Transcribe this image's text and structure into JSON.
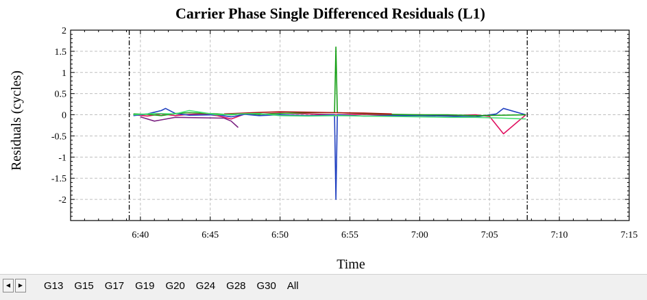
{
  "chart_data": {
    "type": "line",
    "title": "Carrier Phase Single Differenced Residuals (L1)",
    "xlabel": "Time",
    "ylabel": "Residuals (cycles)",
    "ylim": [
      -2.5,
      2
    ],
    "xlim_minutes": [
      35,
      75
    ],
    "x_ticks": [
      "6:40",
      "6:45",
      "6:50",
      "6:55",
      "7:00",
      "7:05",
      "7:10",
      "7:15"
    ],
    "x_tick_minutes": [
      40,
      45,
      50,
      55,
      60,
      65,
      70,
      75
    ],
    "y_ticks": [
      2,
      1.5,
      1,
      0.5,
      0,
      -0.5,
      -1,
      -1.5,
      -2
    ],
    "grid": true,
    "vertical_markers_minutes": [
      39.2,
      67.7
    ],
    "series": [
      {
        "color": "#e01060",
        "x": [
          39.5,
          40.5,
          41.5,
          42.5,
          43.5,
          44.5,
          45.5,
          46.5,
          47.5,
          48.5,
          50,
          52,
          54,
          56,
          58,
          60,
          62,
          64,
          65,
          66,
          67.6
        ],
        "values": [
          0.0,
          -0.03,
          0.02,
          -0.02,
          0.01,
          0.02,
          -0.02,
          -0.1,
          0.02,
          0.01,
          0.04,
          0.02,
          0.0,
          0.01,
          -0.01,
          0.0,
          -0.02,
          0.0,
          -0.04,
          -0.45,
          0.0
        ]
      },
      {
        "color": "#2040c0",
        "x": [
          39.5,
          40.5,
          41.5,
          41.8,
          42.5,
          43.5,
          45.5,
          46.5,
          47.5,
          48.5,
          50,
          52,
          53.9,
          54,
          54.1,
          56,
          58,
          60,
          62,
          64,
          65.5,
          66,
          67.6
        ],
        "values": [
          -0.02,
          0.02,
          0.1,
          0.15,
          0.03,
          -0.01,
          0.0,
          -0.05,
          0.01,
          -0.02,
          0.0,
          -0.02,
          0.0,
          -2.0,
          0.0,
          -0.03,
          -0.02,
          -0.02,
          -0.03,
          -0.05,
          0.02,
          0.15,
          0.0
        ]
      },
      {
        "color": "#18a018",
        "x": [
          39.5,
          40.5,
          41.5,
          42.5,
          43.5,
          45.5,
          46.5,
          47.5,
          48.5,
          50,
          52,
          53.9,
          54,
          54.1,
          56,
          58,
          60,
          62,
          64,
          66,
          67.6
        ],
        "values": [
          0.02,
          0.01,
          -0.02,
          0.03,
          0.05,
          0.02,
          0.0,
          0.03,
          0.01,
          0.03,
          0.05,
          0.05,
          1.6,
          0.05,
          0.03,
          0.01,
          0.0,
          0.0,
          -0.02,
          -0.01,
          0.0
        ]
      },
      {
        "color": "#b01010",
        "x": [
          46,
          48,
          50,
          52,
          54,
          56,
          58
        ],
        "values": [
          0.02,
          0.05,
          0.07,
          0.06,
          0.05,
          0.04,
          0.02
        ]
      },
      {
        "color": "#7a2080",
        "x": [
          40,
          41,
          41.5,
          42.5,
          46,
          46.5,
          47
        ],
        "values": [
          -0.05,
          -0.15,
          -0.12,
          -0.06,
          -0.08,
          -0.15,
          -0.3
        ]
      },
      {
        "color": "#40e070",
        "x": [
          39.5,
          41,
          42.5,
          43.5,
          45.5,
          47,
          48.5,
          50,
          52,
          54,
          56,
          58,
          60,
          62,
          64,
          66,
          67.6
        ],
        "values": [
          0.0,
          0.03,
          0.02,
          0.1,
          0.0,
          0.02,
          0.03,
          -0.02,
          -0.03,
          -0.02,
          -0.03,
          -0.04,
          -0.05,
          -0.06,
          -0.06,
          -0.08,
          -0.1
        ]
      }
    ]
  },
  "tabs": {
    "items": [
      "G13",
      "G15",
      "G17",
      "G19",
      "G20",
      "G24",
      "G28",
      "G30",
      "All"
    ],
    "active": "All",
    "prev_glyph": "◀",
    "next_glyph": "▶"
  }
}
